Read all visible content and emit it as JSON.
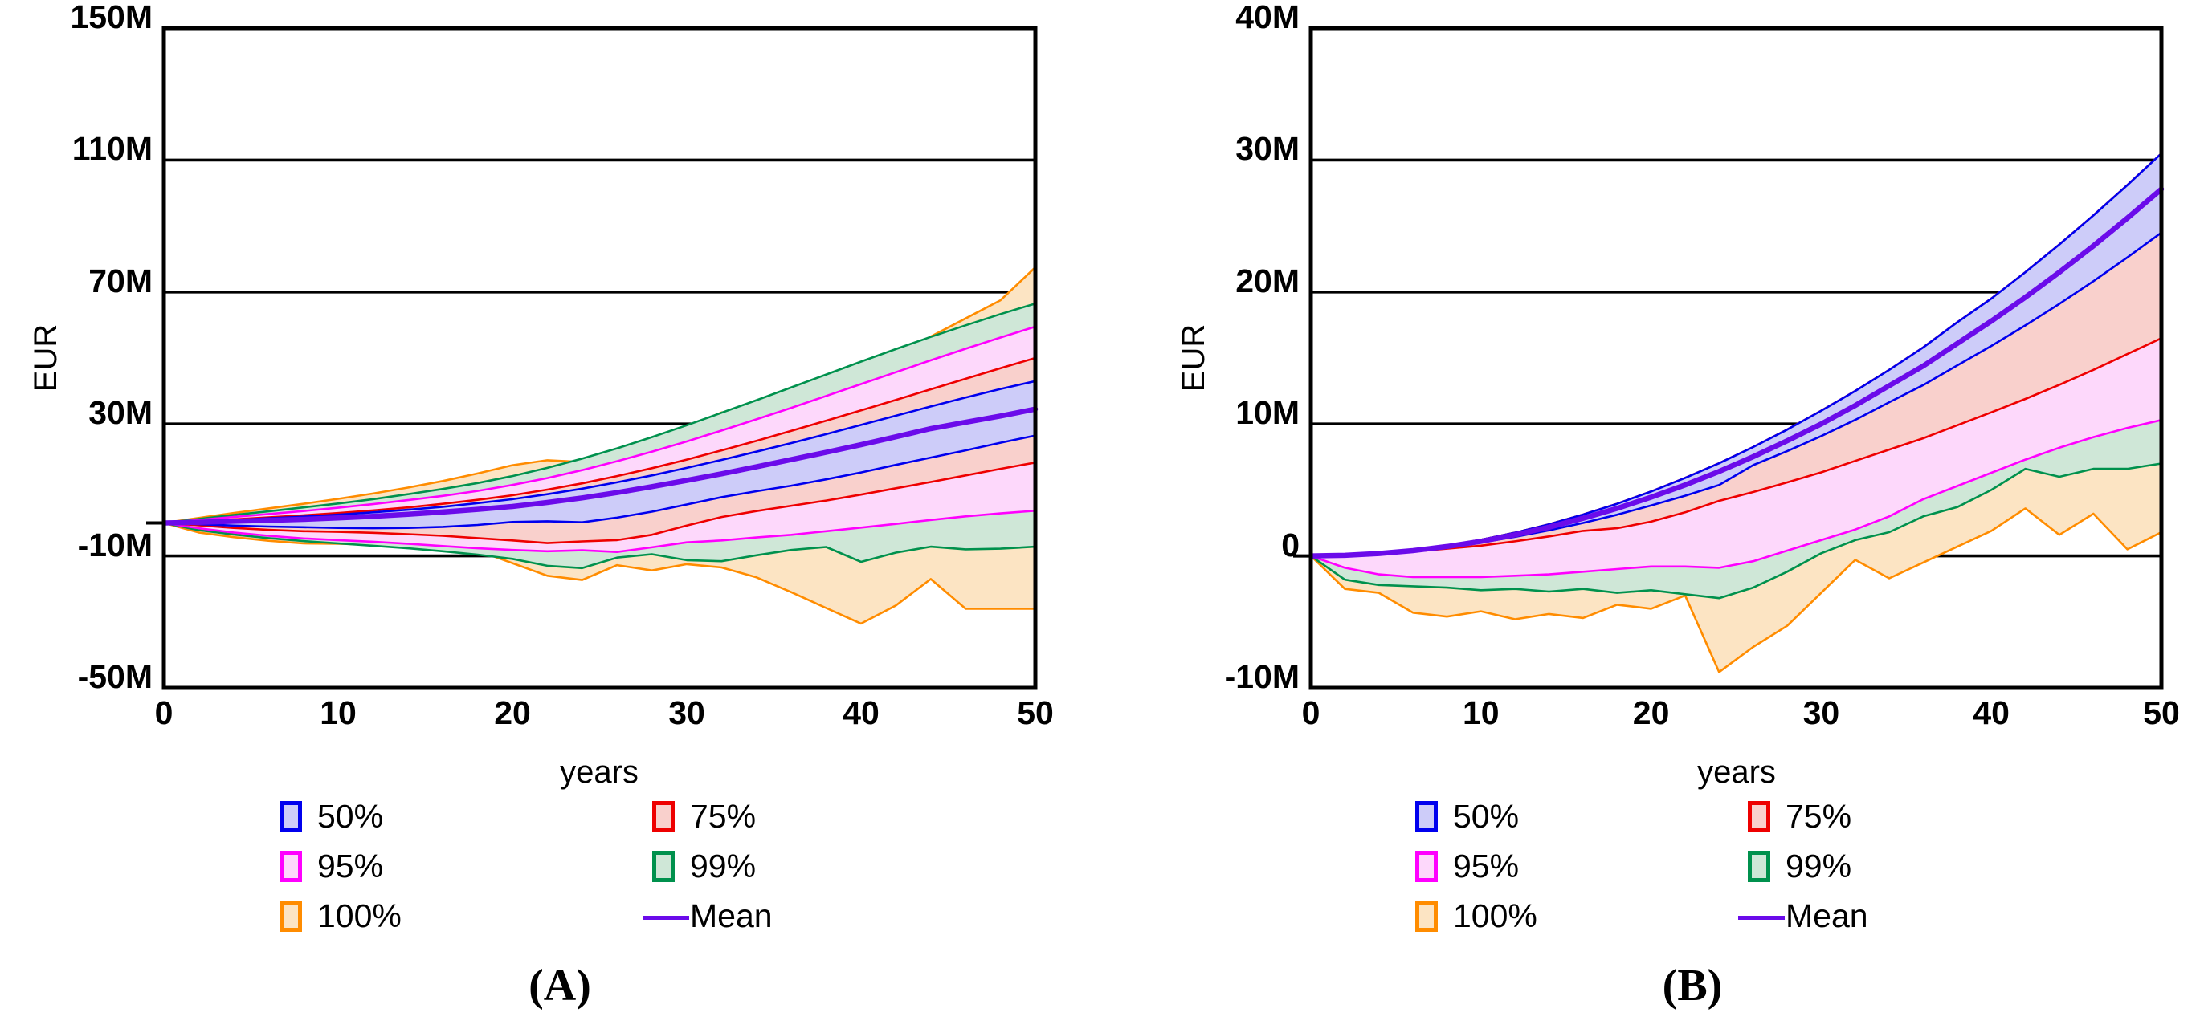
{
  "figure": {
    "captions": [
      "(A)",
      "(B)"
    ],
    "background": "#ffffff",
    "axis_color": "#000000",
    "mean_color": "#6b0bea"
  },
  "legend": {
    "items": [
      {
        "label": "50%",
        "stroke": "#0000ee",
        "fill": "#cdccf9"
      },
      {
        "label": "75%",
        "stroke": "#ee0000",
        "fill": "#f9d0cc"
      },
      {
        "label": "95%",
        "stroke": "#ff00ff",
        "fill": "#fdd8fb"
      },
      {
        "label": "99%",
        "stroke": "#00914d",
        "fill": "#cfe7d7"
      },
      {
        "label": "100%",
        "stroke": "#ff8c00",
        "fill": "#fce4c3"
      },
      {
        "label": "Mean",
        "stroke": "#6b0bea",
        "fill": "none",
        "kind": "line"
      }
    ]
  },
  "chart_data": [
    {
      "type": "area",
      "title": "(A)",
      "xlabel": "years",
      "ylabel": "EUR",
      "grid": true,
      "legend_position": "bottom",
      "xlim": [
        0,
        50
      ],
      "ylim": [
        -50,
        150
      ],
      "xticks": [
        0,
        10,
        20,
        30,
        40,
        50
      ],
      "ytick_labels": [
        "150M",
        "110M",
        "70M",
        "30M",
        "-10M",
        "-50M"
      ],
      "ytick_values": [
        150,
        110,
        70,
        30,
        -10,
        -50
      ],
      "x": [
        0,
        2,
        4,
        6,
        8,
        10,
        12,
        14,
        16,
        18,
        20,
        22,
        24,
        26,
        28,
        30,
        32,
        34,
        36,
        38,
        40,
        42,
        44,
        46,
        48,
        50
      ],
      "mean": [
        0,
        0.2,
        0.5,
        0.8,
        1.1,
        1.5,
        2.0,
        2.6,
        3.3,
        4.1,
        5.0,
        6.2,
        7.6,
        9.2,
        11.0,
        12.9,
        14.9,
        17.0,
        19.2,
        21.4,
        23.7,
        26.1,
        28.6,
        30.5,
        32.4,
        34.5
      ],
      "bands": [
        {
          "name": "100%",
          "upper": [
            0,
            1.5,
            3.0,
            4.4,
            5.8,
            7.3,
            8.9,
            10.7,
            12.7,
            15.0,
            17.5,
            19.0,
            18.5,
            21.5,
            25.0,
            29.0,
            33.5,
            34.0,
            37.5,
            41.5,
            46.0,
            51.0,
            56.5,
            62.0,
            67.5,
            77.5
          ],
          "lower": [
            0,
            -2.9,
            -4.3,
            -5.4,
            -6.2,
            -6.3,
            -6.6,
            -6.4,
            -6.8,
            -8.4,
            -12.2,
            -16.0,
            -17.3,
            -12.8,
            -14.4,
            -12.5,
            -13.5,
            -16.5,
            -21.0,
            -25.8,
            -30.5,
            -25.0,
            -17.0,
            -26.0,
            -26.0,
            -26.0
          ]
        },
        {
          "name": "99%",
          "upper": [
            0,
            1.2,
            2.4,
            3.5,
            4.7,
            5.9,
            7.2,
            8.7,
            10.3,
            12.1,
            14.2,
            16.7,
            19.5,
            22.6,
            26.0,
            29.6,
            33.4,
            37.2,
            41.1,
            45.0,
            48.9,
            52.7,
            56.4,
            59.9,
            63.3,
            66.5
          ],
          "lower": [
            0,
            -2.2,
            -3.5,
            -4.6,
            -5.5,
            -6.2,
            -6.9,
            -7.7,
            -8.6,
            -9.6,
            -10.9,
            -13.0,
            -13.7,
            -10.5,
            -9.5,
            -11.3,
            -11.6,
            -9.8,
            -8.2,
            -7.3,
            -11.8,
            -9.0,
            -7.2,
            -8.0,
            -7.8,
            -7.2
          ]
        },
        {
          "name": "95%",
          "upper": [
            0,
            0.9,
            1.8,
            2.7,
            3.6,
            4.6,
            5.7,
            6.9,
            8.2,
            9.7,
            11.5,
            13.6,
            16.0,
            18.7,
            21.6,
            24.7,
            28.0,
            31.4,
            34.9,
            38.5,
            42.1,
            45.7,
            49.3,
            52.8,
            56.2,
            59.5
          ],
          "lower": [
            0,
            -1.6,
            -2.9,
            -3.9,
            -4.7,
            -5.2,
            -5.7,
            -6.3,
            -7.0,
            -7.7,
            -8.2,
            -8.6,
            -8.3,
            -8.8,
            -7.4,
            -5.9,
            -5.3,
            -4.4,
            -3.6,
            -2.5,
            -1.4,
            -0.3,
            0.9,
            2.0,
            2.9,
            3.7
          ]
        },
        {
          "name": "75%",
          "upper": [
            0,
            0.5,
            1.1,
            1.7,
            2.3,
            3.0,
            3.8,
            4.7,
            5.8,
            7.0,
            8.4,
            10.1,
            12.0,
            14.2,
            16.6,
            19.2,
            22.0,
            24.9,
            27.9,
            31.0,
            34.1,
            37.3,
            40.5,
            43.7,
            46.9,
            50.0
          ],
          "lower": [
            0,
            -0.7,
            -1.5,
            -2.1,
            -2.5,
            -2.7,
            -3.0,
            -3.4,
            -3.9,
            -4.6,
            -5.3,
            -6.1,
            -5.6,
            -5.2,
            -3.6,
            -0.8,
            1.8,
            3.6,
            5.2,
            6.8,
            8.6,
            10.5,
            12.4,
            14.4,
            16.4,
            18.3
          ]
        },
        {
          "name": "50%",
          "upper": [
            0,
            0.4,
            0.9,
            1.4,
            1.9,
            2.5,
            3.2,
            4.0,
            4.9,
            6.0,
            7.2,
            8.7,
            10.4,
            12.3,
            14.4,
            16.7,
            19.1,
            21.6,
            24.2,
            26.9,
            29.7,
            32.5,
            35.3,
            38.0,
            40.6,
            43.0
          ],
          "lower": [
            0,
            -0.4,
            -0.8,
            -1.1,
            -1.3,
            -1.5,
            -1.6,
            -1.5,
            -1.2,
            -0.6,
            0.3,
            0.5,
            0.2,
            1.6,
            3.4,
            5.6,
            7.8,
            9.6,
            11.3,
            13.2,
            15.3,
            17.6,
            19.8,
            22.0,
            24.3,
            26.5
          ]
        }
      ]
    },
    {
      "type": "area",
      "title": "(B)",
      "xlabel": "years",
      "ylabel": "EUR",
      "grid": true,
      "legend_position": "bottom",
      "xlim": [
        0,
        50
      ],
      "ylim": [
        -10,
        40
      ],
      "xticks": [
        0,
        10,
        20,
        30,
        40,
        50
      ],
      "ytick_labels": [
        "40M",
        "30M",
        "20M",
        "10M",
        "0",
        "-10M"
      ],
      "ytick_values": [
        40,
        30,
        20,
        10,
        0,
        -10
      ],
      "x": [
        0,
        2,
        4,
        6,
        8,
        10,
        12,
        14,
        16,
        18,
        20,
        22,
        24,
        26,
        28,
        30,
        32,
        34,
        36,
        38,
        40,
        42,
        44,
        46,
        48,
        50
      ],
      "mean": [
        0,
        0.04,
        0.18,
        0.4,
        0.71,
        1.11,
        1.6,
        2.18,
        2.85,
        3.6,
        4.45,
        5.38,
        6.4,
        7.52,
        8.72,
        10.0,
        11.4,
        12.9,
        14.4,
        16.1,
        17.8,
        19.6,
        21.5,
        23.5,
        25.6,
        27.8
      ],
      "bands": [
        {
          "name": "100%",
          "upper": [
            0,
            0.05,
            0.2,
            0.44,
            0.78,
            1.22,
            1.76,
            2.39,
            3.13,
            3.95,
            4.88,
            5.91,
            7.02,
            8.25,
            9.57,
            11.0,
            12.5,
            14.1,
            15.8,
            17.7,
            19.5,
            21.5,
            23.6,
            25.8,
            28.1,
            30.5
          ],
          "lower": [
            0,
            -2.5,
            -2.8,
            -4.3,
            -4.6,
            -4.2,
            -4.8,
            -4.4,
            -4.7,
            -3.7,
            -4.0,
            -3.0,
            -8.8,
            -6.9,
            -5.3,
            -2.8,
            -0.3,
            -1.7,
            -0.5,
            0.7,
            1.9,
            3.6,
            1.6,
            3.2,
            0.5,
            1.8
          ]
        },
        {
          "name": "99%",
          "upper": [
            0,
            0.05,
            0.2,
            0.44,
            0.78,
            1.22,
            1.76,
            2.39,
            3.13,
            3.95,
            4.88,
            5.91,
            7.02,
            8.25,
            9.57,
            11.0,
            12.5,
            14.1,
            15.8,
            17.7,
            19.5,
            21.5,
            23.6,
            25.8,
            28.1,
            30.5
          ],
          "lower": [
            0,
            -1.8,
            -2.2,
            -2.3,
            -2.4,
            -2.6,
            -2.5,
            -2.7,
            -2.5,
            -2.8,
            -2.6,
            -2.9,
            -3.2,
            -2.4,
            -1.2,
            0.2,
            1.2,
            1.8,
            3.0,
            3.7,
            5.0,
            6.6,
            6.0,
            6.6,
            6.6,
            7.0
          ]
        },
        {
          "name": "95%",
          "upper": [
            0,
            0.05,
            0.2,
            0.44,
            0.78,
            1.22,
            1.76,
            2.39,
            3.13,
            3.95,
            4.88,
            5.91,
            7.02,
            8.25,
            9.57,
            11.0,
            12.5,
            14.1,
            15.8,
            17.7,
            19.5,
            21.5,
            23.6,
            25.8,
            28.1,
            30.5
          ],
          "lower": [
            0,
            -0.9,
            -1.4,
            -1.6,
            -1.6,
            -1.6,
            -1.5,
            -1.4,
            -1.2,
            -1.0,
            -0.8,
            -0.8,
            -0.9,
            -0.4,
            0.4,
            1.2,
            2.0,
            3.0,
            4.3,
            5.3,
            6.3,
            7.3,
            8.2,
            9.0,
            9.7,
            10.3
          ]
        },
        {
          "name": "75%",
          "upper": [
            0,
            0.05,
            0.2,
            0.44,
            0.78,
            1.22,
            1.76,
            2.39,
            3.13,
            3.95,
            4.88,
            5.91,
            7.02,
            8.25,
            9.57,
            11.0,
            12.5,
            14.1,
            15.8,
            17.7,
            19.5,
            21.5,
            23.6,
            25.8,
            28.1,
            30.5
          ],
          "lower": [
            0,
            0.03,
            0.15,
            0.32,
            0.55,
            0.78,
            1.11,
            1.48,
            1.9,
            2.1,
            2.6,
            3.3,
            4.17,
            4.84,
            5.57,
            6.33,
            7.2,
            8.06,
            8.92,
            9.9,
            10.88,
            11.9,
            12.97,
            14.1,
            15.3,
            16.5
          ]
        },
        {
          "name": "50%",
          "upper": [
            0,
            0.05,
            0.2,
            0.44,
            0.78,
            1.22,
            1.76,
            2.39,
            3.13,
            3.95,
            4.88,
            5.91,
            7.02,
            8.25,
            9.57,
            11.0,
            12.5,
            14.1,
            15.8,
            17.7,
            19.5,
            21.5,
            23.6,
            25.8,
            28.1,
            30.5
          ],
          "lower": [
            0,
            0.04,
            0.17,
            0.38,
            0.66,
            1.02,
            1.45,
            1.94,
            2.5,
            3.12,
            3.82,
            4.56,
            5.37,
            6.88,
            7.94,
            9.08,
            10.31,
            11.65,
            12.95,
            14.44,
            15.91,
            17.47,
            19.1,
            20.82,
            22.62,
            24.5
          ]
        }
      ]
    }
  ]
}
